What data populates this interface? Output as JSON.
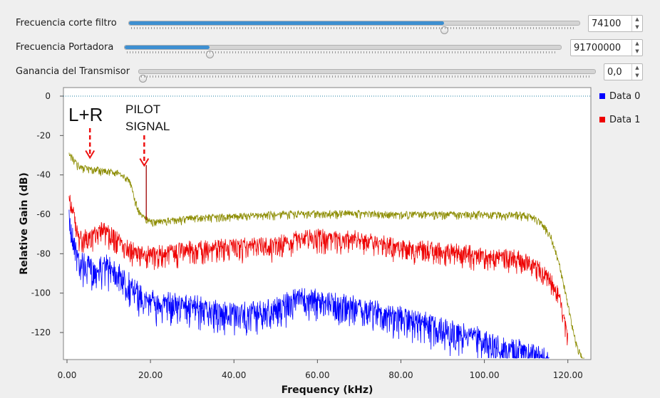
{
  "controls": [
    {
      "label": "Frecuencia corte filtro",
      "value": "74100",
      "level": 0.705
    },
    {
      "label": "Frecuencia Portadora",
      "value": "91700000",
      "level": 0.19
    },
    {
      "label": "Ganancia del Transmisor",
      "value": "0,0",
      "level": 0.0
    }
  ],
  "spin_up_icon": "▲",
  "spin_down_icon": "▼",
  "chart_data": {
    "type": "line",
    "xlabel": "Frequency (kHz)",
    "ylabel": "Relative Gain (dB)",
    "xlim": [
      0,
      125
    ],
    "ylim": [
      -133,
      0
    ],
    "x_ticks": [
      "0.00",
      "20.00",
      "40.00",
      "60.00",
      "80.00",
      "100.00",
      "120.00"
    ],
    "y_ticks": [
      "0",
      "-20",
      "-40",
      "-60",
      "-80",
      "-100",
      "-120"
    ],
    "reference_line": 0,
    "legend_position": "right",
    "series": [
      {
        "name": "Data 0",
        "color": "#0000ff",
        "shown_in_legend": true,
        "x": [
          0.5,
          3,
          6,
          9,
          12,
          15,
          18,
          20,
          30,
          40,
          50,
          55,
          60,
          70,
          80,
          90,
          100,
          110,
          115
        ],
        "y": [
          -60,
          -80,
          -85,
          -82,
          -85,
          -92,
          -98,
          -100,
          -103,
          -107,
          -105,
          -99,
          -100,
          -104,
          -108,
          -115,
          -120,
          -127,
          -130
        ]
      },
      {
        "name": "Data 1",
        "color": "#ee0000",
        "shown_in_legend": true,
        "x": [
          0.5,
          3,
          6,
          9,
          12,
          15,
          18,
          20,
          30,
          40,
          50,
          55,
          60,
          70,
          80,
          90,
          100,
          108,
          112,
          115,
          118,
          120
        ],
        "y": [
          -48,
          -70,
          -68,
          -65,
          -70,
          -75,
          -77,
          -78,
          -75,
          -74,
          -73,
          -70,
          -69,
          -70,
          -74,
          -76,
          -78,
          -80,
          -83,
          -88,
          -100,
          -120
        ]
      },
      {
        "name": "",
        "color": "#8c8c00",
        "shown_in_legend": false,
        "x": [
          0.5,
          3,
          6,
          9,
          12,
          15,
          16,
          17,
          18,
          20,
          30,
          40,
          50,
          60,
          70,
          80,
          90,
          100,
          110,
          113,
          116,
          118,
          120,
          122,
          124
        ],
        "y": [
          -28,
          -35,
          -36,
          -37,
          -38,
          -42,
          -50,
          -56,
          -60,
          -63,
          -61,
          -60,
          -59,
          -58.5,
          -58.5,
          -59,
          -59,
          -59,
          -59.5,
          -62,
          -70,
          -85,
          -105,
          -125,
          -135
        ]
      }
    ],
    "pilot_spike": {
      "x": 19,
      "y_top": -35,
      "y_base": -63
    },
    "annotations": [
      {
        "text": "L+R",
        "target_x": 5.5,
        "target_y": -32
      },
      {
        "text": "PILOT",
        "text2": "SIGNAL",
        "target_x": 18.5,
        "target_y": -36
      }
    ]
  }
}
